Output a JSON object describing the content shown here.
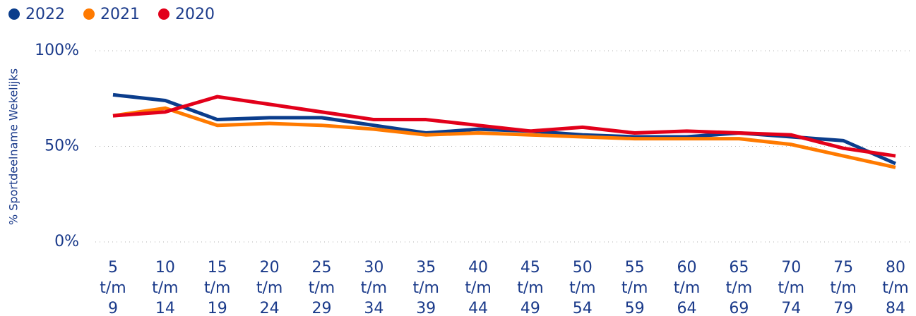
{
  "chart_data": {
    "type": "line",
    "y_label": "% Sportdeelname Wekelijks",
    "categories": [
      "5 t/m 9",
      "10 t/m 14",
      "15 t/m 19",
      "20 t/m 24",
      "25 t/m 29",
      "30 t/m 34",
      "35 t/m 39",
      "40 t/m 44",
      "45 t/m 49",
      "50 t/m 54",
      "55 t/m 59",
      "60 t/m 64",
      "65 t/m 69",
      "70 t/m 74",
      "75 t/m 79",
      "80 t/m 84"
    ],
    "series": [
      {
        "name": "2022",
        "color": "#0b3d8c",
        "values": [
          77,
          74,
          64,
          65,
          65,
          61,
          57,
          59,
          58,
          56,
          55,
          55,
          57,
          55,
          53,
          41
        ]
      },
      {
        "name": "2021",
        "color": "#ff7a00",
        "values": [
          66,
          70,
          61,
          62,
          61,
          59,
          56,
          57,
          56,
          55,
          54,
          54,
          54,
          51,
          45,
          39
        ]
      },
      {
        "name": "2020",
        "color": "#e2001a",
        "values": [
          66,
          68,
          76,
          72,
          68,
          64,
          64,
          61,
          58,
          60,
          57,
          58,
          57,
          56,
          49,
          45
        ]
      }
    ],
    "ylim": [
      0,
      100
    ],
    "yticks": [
      {
        "value": 0,
        "label": "0%"
      },
      {
        "value": 50,
        "label": "50%"
      },
      {
        "value": 100,
        "label": "100%"
      }
    ],
    "grid": true,
    "legend": "top-left"
  }
}
